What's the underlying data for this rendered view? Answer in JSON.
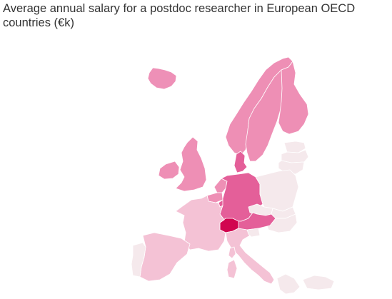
{
  "title": "Average annual salary for a postdoc researcher in European OECD countries (€k)",
  "countries": [
    {
      "id": "iceland",
      "color": "#ee90b7"
    },
    {
      "id": "norway",
      "color": "#ee8fb5"
    },
    {
      "id": "sweden",
      "color": "#ee8fb5"
    },
    {
      "id": "finland",
      "color": "#ee8fb5"
    },
    {
      "id": "estonia",
      "color": "#f5e9ec"
    },
    {
      "id": "latvia",
      "color": "#f5e9ec"
    },
    {
      "id": "lithuania",
      "color": "#f5e9ec"
    },
    {
      "id": "uk",
      "color": "#ee8fb5"
    },
    {
      "id": "ireland",
      "color": "#ee8fb5"
    },
    {
      "id": "denmark",
      "color": "#e45f99"
    },
    {
      "id": "netherlands",
      "color": "#ee8fb5"
    },
    {
      "id": "belgium",
      "color": "#ee8fb5"
    },
    {
      "id": "luxembourg",
      "color": "#e45f99"
    },
    {
      "id": "germany",
      "color": "#e45f99"
    },
    {
      "id": "poland",
      "color": "#f5e9ec"
    },
    {
      "id": "czechia",
      "color": "#f5e9ec"
    },
    {
      "id": "slovakia",
      "color": "#f5e9ec"
    },
    {
      "id": "hungary",
      "color": "#f5e9ec"
    },
    {
      "id": "austria",
      "color": "#e45f99"
    },
    {
      "id": "switzerland",
      "color": "#d1054f"
    },
    {
      "id": "france",
      "color": "#f4c2d5"
    },
    {
      "id": "spain",
      "color": "#f4c2d5"
    },
    {
      "id": "portugal",
      "color": "#f5e9ec"
    },
    {
      "id": "italy",
      "color": "#f4c2d5"
    },
    {
      "id": "slovenia",
      "color": "#f5e9ec"
    },
    {
      "id": "greece",
      "color": "#f5e9ec"
    },
    {
      "id": "turkey",
      "color": "#f5e9ec"
    }
  ]
}
